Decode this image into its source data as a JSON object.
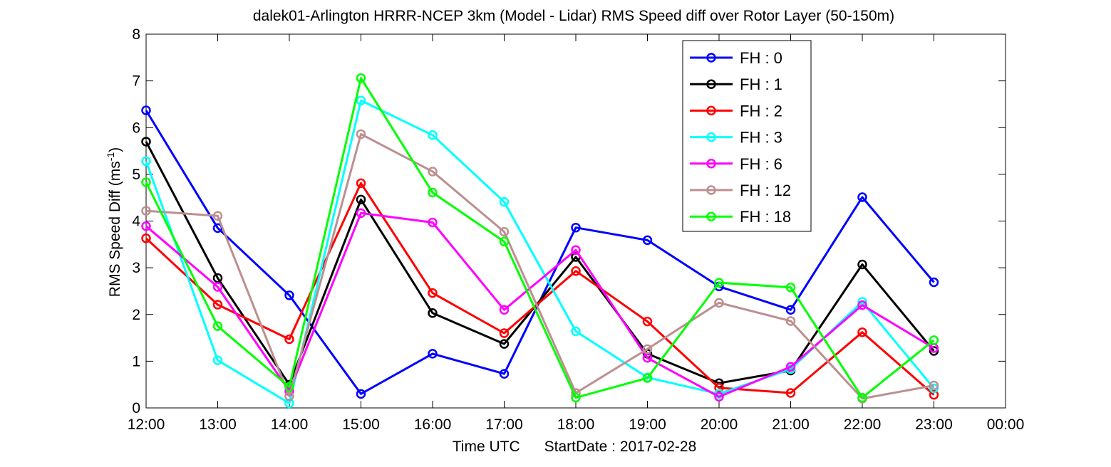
{
  "chart_data": {
    "type": "line",
    "title": "dalek01-Arlington HRRR-NCEP 3km (Model - Lidar) RMS Speed diff over Rotor Layer (50-150m)",
    "xlabel": "Time UTC",
    "xlabel_note": "StartDate : 2017-02-28",
    "ylabel": "RMS Speed Diff (ms",
    "ylabel_sup": "-1",
    "ylabel_close": ")",
    "ylim": [
      0,
      8
    ],
    "yticks": [
      "0",
      "1",
      "2",
      "3",
      "4",
      "5",
      "6",
      "7",
      "8"
    ],
    "x_ticks": [
      "12:00",
      "13:00",
      "14:00",
      "15:00",
      "16:00",
      "17:00",
      "18:00",
      "19:00",
      "20:00",
      "21:00",
      "22:00",
      "23:00",
      "00:00"
    ],
    "grid": false,
    "legend_position": "top-right",
    "series": [
      {
        "name": "FH : 0",
        "color": "#0000ff",
        "values": [
          6.37,
          3.85,
          2.41,
          0.3,
          1.16,
          0.73,
          3.86,
          3.59,
          2.6,
          2.1,
          4.51,
          2.69
        ]
      },
      {
        "name": "FH : 1",
        "color": "#000000",
        "values": [
          5.7,
          2.78,
          0.5,
          4.46,
          2.03,
          1.37,
          3.23,
          1.16,
          0.53,
          0.8,
          3.07,
          1.22
        ]
      },
      {
        "name": "FH : 2",
        "color": "#ff0000",
        "values": [
          3.63,
          2.21,
          1.47,
          4.81,
          2.46,
          1.6,
          2.93,
          1.85,
          0.43,
          0.32,
          1.62,
          0.28
        ]
      },
      {
        "name": "FH : 3",
        "color": "#00ffff",
        "values": [
          5.28,
          1.02,
          0.1,
          6.58,
          5.84,
          4.41,
          1.64,
          0.65,
          0.3,
          0.83,
          2.27,
          0.42
        ]
      },
      {
        "name": "FH : 6",
        "color": "#ff00ff",
        "values": [
          3.89,
          2.59,
          0.36,
          4.17,
          3.97,
          2.1,
          3.38,
          1.07,
          0.24,
          0.88,
          2.2,
          1.28
        ]
      },
      {
        "name": "FH : 12",
        "color": "#bc8f8f",
        "values": [
          4.22,
          4.11,
          0.25,
          5.86,
          5.06,
          3.77,
          0.32,
          1.26,
          2.25,
          1.86,
          0.2,
          0.48
        ]
      },
      {
        "name": "FH : 18",
        "color": "#00ff00",
        "values": [
          4.83,
          1.75,
          0.45,
          7.06,
          4.61,
          3.56,
          0.22,
          0.64,
          2.68,
          2.58,
          0.22,
          1.45
        ]
      }
    ]
  }
}
